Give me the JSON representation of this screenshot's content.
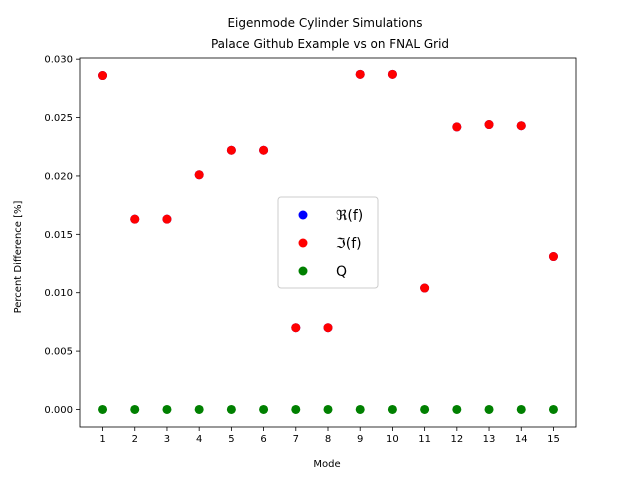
{
  "chart_data": {
    "type": "scatter",
    "title": "Eigenmode Cylinder Simulations",
    "subtitle": "Palace Github Example vs on FNAL Grid",
    "xlabel": "Mode",
    "ylabel": "Percent Difference [%]",
    "x": [
      1,
      2,
      3,
      4,
      5,
      6,
      7,
      8,
      9,
      10,
      11,
      12,
      13,
      14,
      15
    ],
    "xticks": [
      "1",
      "2",
      "3",
      "4",
      "5",
      "6",
      "7",
      "8",
      "9",
      "10",
      "11",
      "12",
      "13",
      "14",
      "15"
    ],
    "yticks": [
      "0.000",
      "0.005",
      "0.010",
      "0.015",
      "0.020",
      "0.025",
      "0.030"
    ],
    "ylim": [
      -0.0015,
      0.0301
    ],
    "xlim": [
      0.3,
      15.7
    ],
    "legend_position": "center",
    "series": [
      {
        "name": "ℜ(f)",
        "color": "#0000ff",
        "values": [
          0.0286,
          0.0163,
          0.0163,
          0.0201,
          0.0222,
          0.0222,
          0.007,
          0.007,
          0.0287,
          0.0287,
          0.0104,
          0.0242,
          0.0244,
          0.0243,
          0.0131
        ]
      },
      {
        "name": "ℑ(f)",
        "color": "#ff0000",
        "values": [
          0.0286,
          0.0163,
          0.0163,
          0.0201,
          0.0222,
          0.0222,
          0.007,
          0.007,
          0.0287,
          0.0287,
          0.0104,
          0.0242,
          0.0244,
          0.0243,
          0.0131
        ]
      },
      {
        "name": "Q",
        "color": "#008000",
        "values": [
          0,
          0,
          0,
          0,
          0,
          0,
          0,
          0,
          0,
          0,
          0,
          0,
          0,
          0,
          0
        ]
      }
    ]
  }
}
